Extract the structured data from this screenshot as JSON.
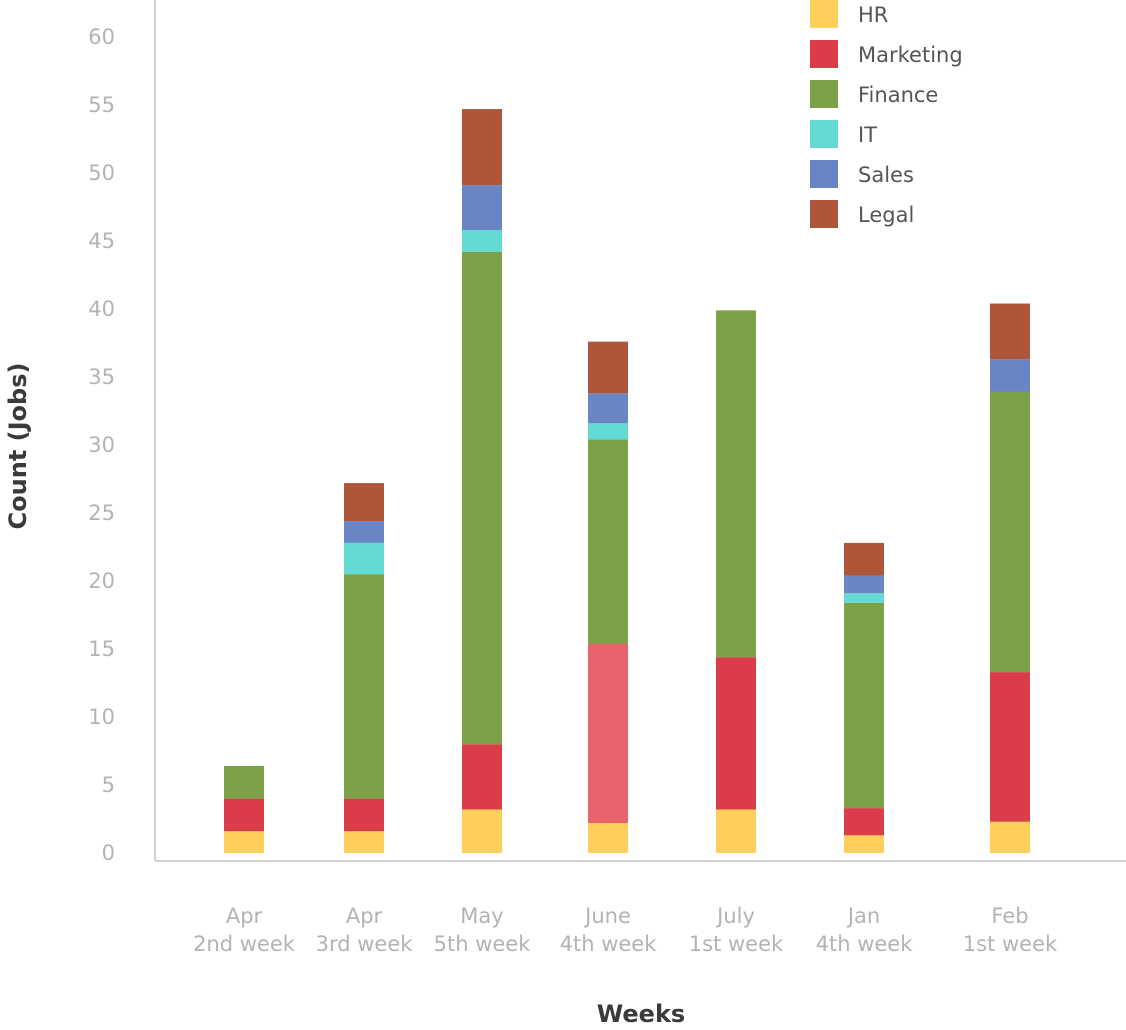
{
  "chart_data": {
    "type": "bar",
    "stacked": true,
    "title": "",
    "xlabel": "Weeks",
    "ylabel": "Count (Jobs)",
    "ylim": [
      0,
      60
    ],
    "yticks": [
      0,
      5,
      10,
      15,
      20,
      25,
      30,
      35,
      40,
      45,
      50,
      55,
      60
    ],
    "grid": false,
    "legend_position": "top-right",
    "categories": [
      [
        "Apr",
        "2nd week"
      ],
      [
        "Apr",
        "3rd week"
      ],
      [
        "May",
        "5th week"
      ],
      [
        "June",
        "4th week"
      ],
      [
        "July",
        "1st week"
      ],
      [
        "Jan",
        "4th week"
      ],
      [
        "Feb",
        "1st week"
      ]
    ],
    "series": [
      {
        "name": "HR",
        "color": "#FFCF5C",
        "values": [
          1.6,
          1.6,
          3.2,
          2.2,
          3.2,
          1.3,
          2.3
        ]
      },
      {
        "name": "Marketing",
        "color": "#DB3C4A",
        "values": [
          2.4,
          2.4,
          4.8,
          13.2,
          11.2,
          2.0,
          11.0
        ],
        "highlight": {
          "index": 3,
          "color": "#E8646D"
        }
      },
      {
        "name": "Finance",
        "color": "#7CA146",
        "values": [
          2.4,
          16.5,
          36.2,
          15.0,
          25.5,
          15.1,
          20.6
        ]
      },
      {
        "name": "IT",
        "color": "#63DBD4",
        "values": [
          0,
          2.3,
          1.6,
          1.2,
          0,
          0.7,
          0
        ]
      },
      {
        "name": "Sales",
        "color": "#6A85C6",
        "values": [
          0,
          1.6,
          3.3,
          2.2,
          0,
          1.3,
          2.4
        ]
      },
      {
        "name": "Legal",
        "color": "#AE5639",
        "values": [
          0,
          2.8,
          5.6,
          3.8,
          0,
          2.4,
          4.1
        ]
      }
    ]
  }
}
